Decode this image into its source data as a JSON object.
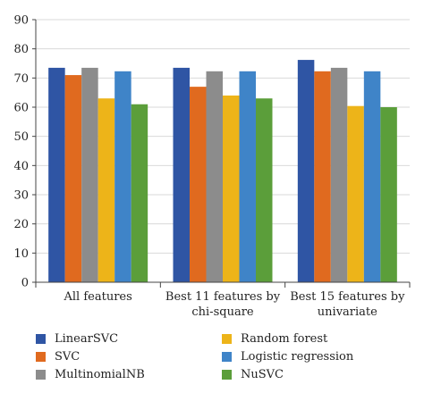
{
  "chart_data": {
    "type": "bar",
    "categories": [
      [
        "All features"
      ],
      [
        "Best 11 features by",
        "chi-square"
      ],
      [
        "Best 15 features by",
        "univariate"
      ]
    ],
    "series": [
      {
        "name": "LinearSVC",
        "color": "#2f55a4",
        "values": [
          73.5,
          73.5,
          76.2
        ]
      },
      {
        "name": "SVC",
        "color": "#e06a1f",
        "values": [
          71.0,
          67.0,
          72.3
        ]
      },
      {
        "name": "MultinomialNB",
        "color": "#8c8c8c",
        "values": [
          73.5,
          72.3,
          73.5
        ]
      },
      {
        "name": "Random forest",
        "color": "#edb419",
        "values": [
          63.0,
          64.0,
          60.4
        ]
      },
      {
        "name": "Logistic regression",
        "color": "#3f84c8",
        "values": [
          72.3,
          72.3,
          72.3
        ]
      },
      {
        "name": "NuSVC",
        "color": "#5b9e3a",
        "values": [
          61.0,
          63.0,
          60.0
        ]
      }
    ],
    "ylim": [
      0,
      90
    ],
    "yticks": [
      "0",
      "10",
      "20",
      "30",
      "40",
      "50",
      "60",
      "70",
      "80",
      "90"
    ],
    "grid": true,
    "legend_position": "bottom"
  }
}
